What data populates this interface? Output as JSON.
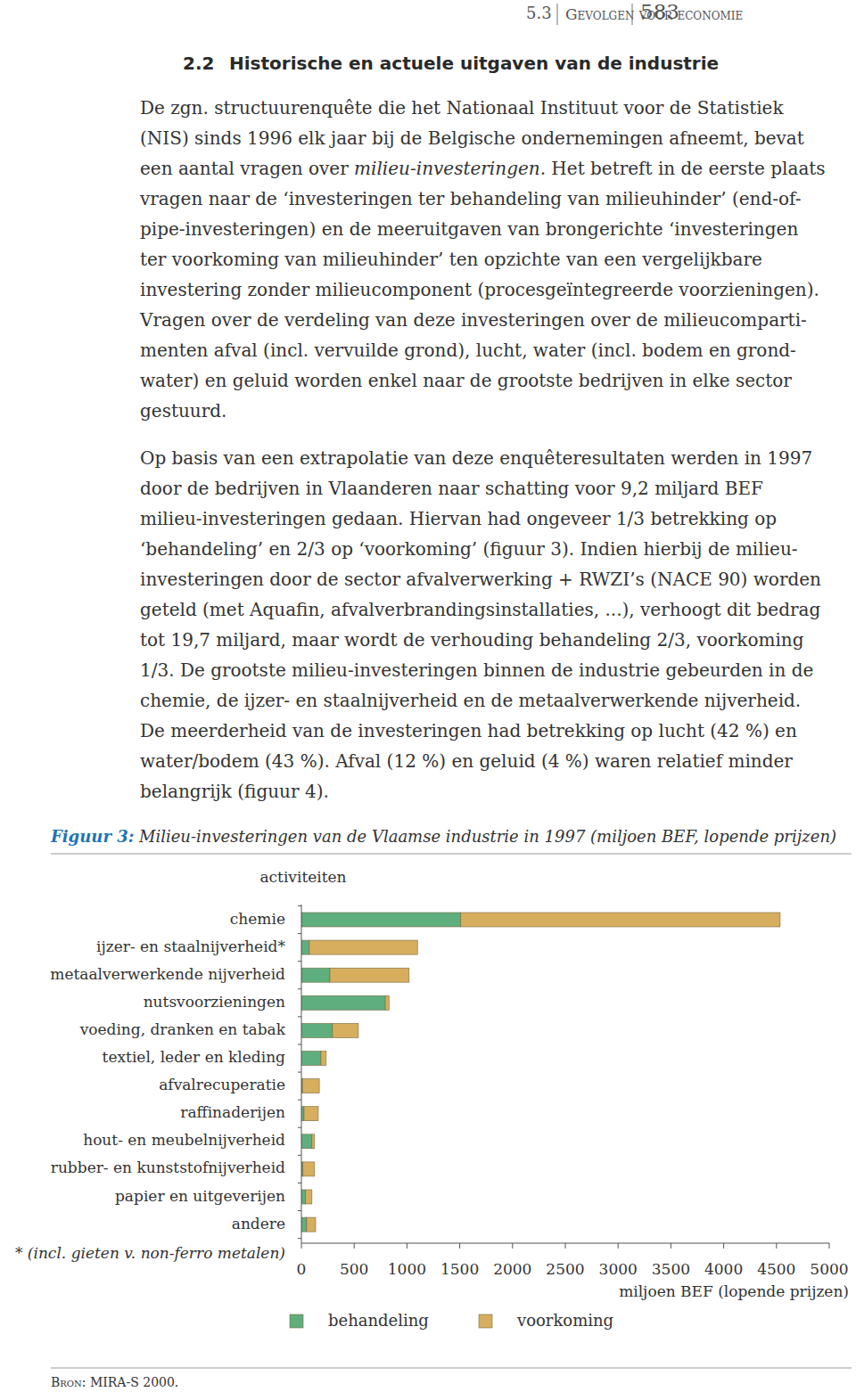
{
  "header": {
    "section_number": "5.3",
    "title": "Gevolgen voor economie",
    "page": "583"
  },
  "section": {
    "number": "2.2",
    "title": "Historische en actuele uitgaven van de industrie"
  },
  "paragraphs": [
    {
      "lines": [
        "De zgn. structuurenquête die het Nationaal Instituut voor de Statistiek",
        "(NIS) sinds 1996 elk jaar bij de Belgische ondernemingen afneemt, bevat",
        {
          "text": [
            "een aantal vragen over ",
            "milieu-investeringen.",
            " Het betreft in de eerste plaats"
          ],
          "italic": [
            false,
            true,
            false
          ]
        },
        "vragen naar de ‘investeringen ter behandeling van milieuhinder’ (end-of-",
        "pipe-investeringen) en de meeruitgaven van brongerichte ‘investeringen",
        "ter voorkoming van milieuhinder’ ten opzichte van een vergelijkbare",
        "investering zonder milieucomponent (procesgeïntegreerde voorzieningen).",
        "Vragen over de verdeling van deze investeringen over de milieucomparti-",
        "menten afval (incl. vervuilde grond), lucht, water (incl. bodem en grond-",
        "water) en geluid worden enkel naar de grootste bedrijven in elke sector",
        "gestuurd."
      ]
    },
    {
      "lines": [
        "Op basis van een extrapolatie van deze enquêteresultaten werden in 1997",
        "door de bedrijven in Vlaanderen naar schatting voor 9,2 miljard BEF",
        "milieu-investeringen gedaan. Hiervan had ongeveer 1/3 betrekking op",
        "‘behandeling’ en 2/3 op ‘voorkoming’ (figuur 3). Indien hierbij de milieu-",
        "investeringen door de sector afvalverwerking + RWZI’s (NACE 90) worden",
        "geteld (met Aquafin, afvalverbrandingsinstallaties, ...), verhoogt dit bedrag",
        "tot 19,7 miljard, maar wordt de verhouding behandeling 2/3, voorkoming",
        "1/3. De grootste milieu-investeringen binnen de industrie gebeurden in de",
        "chemie, de ijzer- en staalnijverheid en de metaalverwerkende nijverheid.",
        "De meerderheid van de investeringen had betrekking op lucht (42 %) en",
        "water/bodem (43 %). Afval (12 %) en geluid (4 %) waren relatief minder",
        "belangrijk (figuur 4)."
      ]
    }
  ],
  "figure": {
    "label": "Figuur 3:",
    "caption": "Milieu-investeringen van de Vlaamse industrie in 1997 (miljoen BEF, lopende prijzen)"
  },
  "chart_data": {
    "type": "bar",
    "orientation": "horizontal",
    "stacked": true,
    "y_label": "activiteiten",
    "x_label": "miljoen BEF (lopende prijzen)",
    "annotation": "* (incl. gieten v. non-ferro metalen)",
    "categories": [
      "chemie",
      "ijzer- en staalnijverheid*",
      "metaalverwerkende nijverheid",
      "nutsvoorzieningen",
      "voeding, dranken en tabak",
      "textiel, leder en kleding",
      "afvalrecuperatie",
      "raffinaderijen",
      "hout- en meubelnijverheid",
      "rubber- en kunststofnijverheid",
      "papier en uitgeverijen",
      "andere"
    ],
    "series": [
      {
        "name": "behandeling",
        "color": "#5fae7e",
        "values": [
          1510,
          75,
          270,
          795,
          295,
          185,
          10,
          25,
          100,
          15,
          40,
          50
        ]
      },
      {
        "name": "voorkoming",
        "color": "#d6ae5e",
        "values": [
          3025,
          1025,
          750,
          35,
          245,
          50,
          160,
          135,
          25,
          110,
          60,
          85
        ]
      }
    ],
    "xlim": [
      0,
      5000
    ],
    "xticks": [
      0,
      500,
      1000,
      1500,
      2000,
      2500,
      3000,
      3500,
      4000,
      4500,
      5000
    ],
    "legend": "bottom"
  },
  "source": "Bron: MIRA-S 2000."
}
